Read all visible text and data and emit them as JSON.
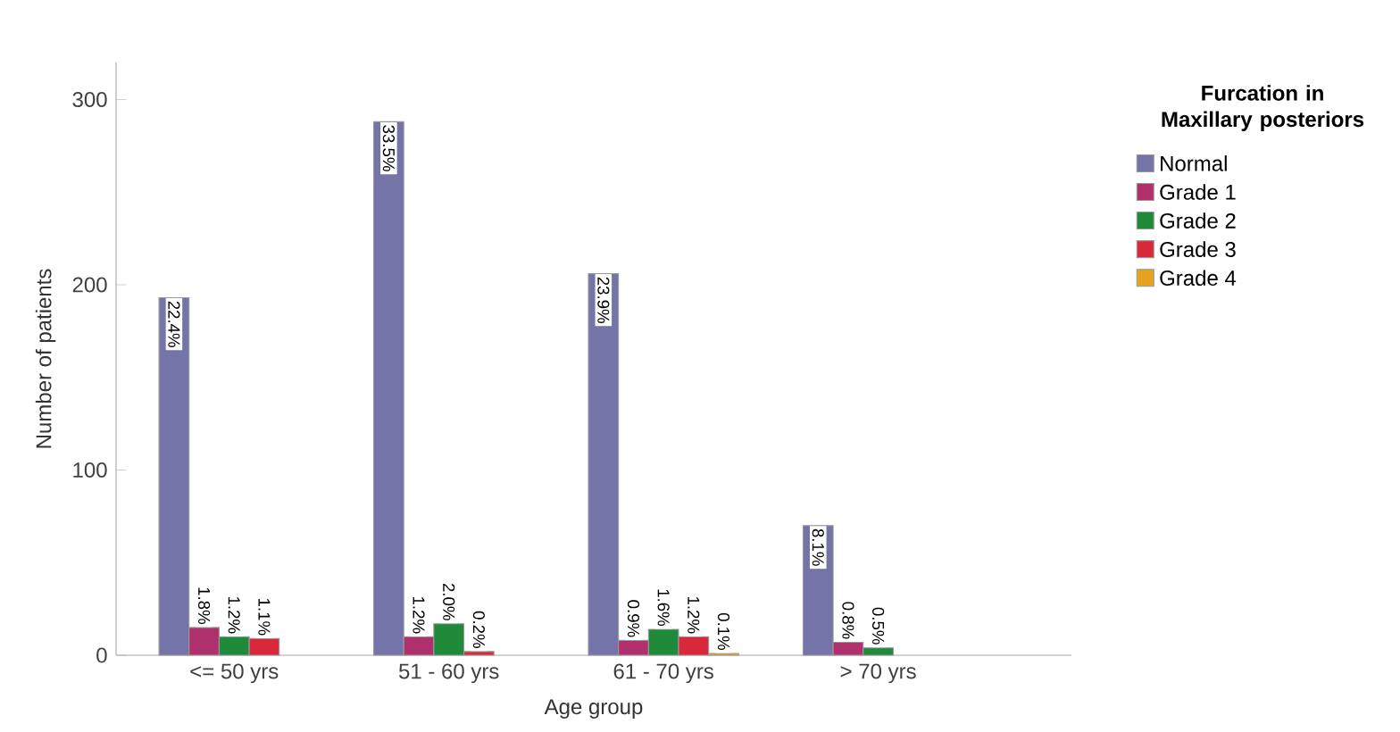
{
  "chart_data": {
    "type": "bar",
    "xlabel": "Age group",
    "ylabel": "Number of patients",
    "legend_title": "Furcation in Maxillary posteriors",
    "categories": [
      "<= 50 yrs",
      "51 - 60 yrs",
      "61 - 70 yrs",
      "> 70 yrs"
    ],
    "series": [
      {
        "name": "Normal",
        "color": "#7474a8",
        "values": [
          193,
          288,
          206,
          70
        ]
      },
      {
        "name": "Grade 1",
        "color": "#b0306e",
        "values": [
          15,
          10,
          8,
          7
        ]
      },
      {
        "name": "Grade 2",
        "color": "#1e8a3a",
        "values": [
          10,
          17,
          14,
          4
        ]
      },
      {
        "name": "Grade 3",
        "color": "#d8283a",
        "values": [
          9,
          2,
          10,
          null
        ]
      },
      {
        "name": "Grade 4",
        "color": "#e8a020",
        "values": [
          null,
          null,
          1,
          null
        ]
      }
    ],
    "annotations": [
      "22.4%",
      "33.5%",
      "23.9%",
      "8.1%",
      "1.8%",
      "1.2%",
      "0.9%",
      "0.8%",
      "1.2%",
      "2.0%",
      "1.6%",
      "0.5%",
      "1.1%",
      "0.2%",
      "1.2%",
      "0.1%"
    ],
    "ylim": [
      0,
      320
    ],
    "yticks": [
      0,
      100,
      200,
      300
    ],
    "grid": false,
    "legend": "top right"
  }
}
